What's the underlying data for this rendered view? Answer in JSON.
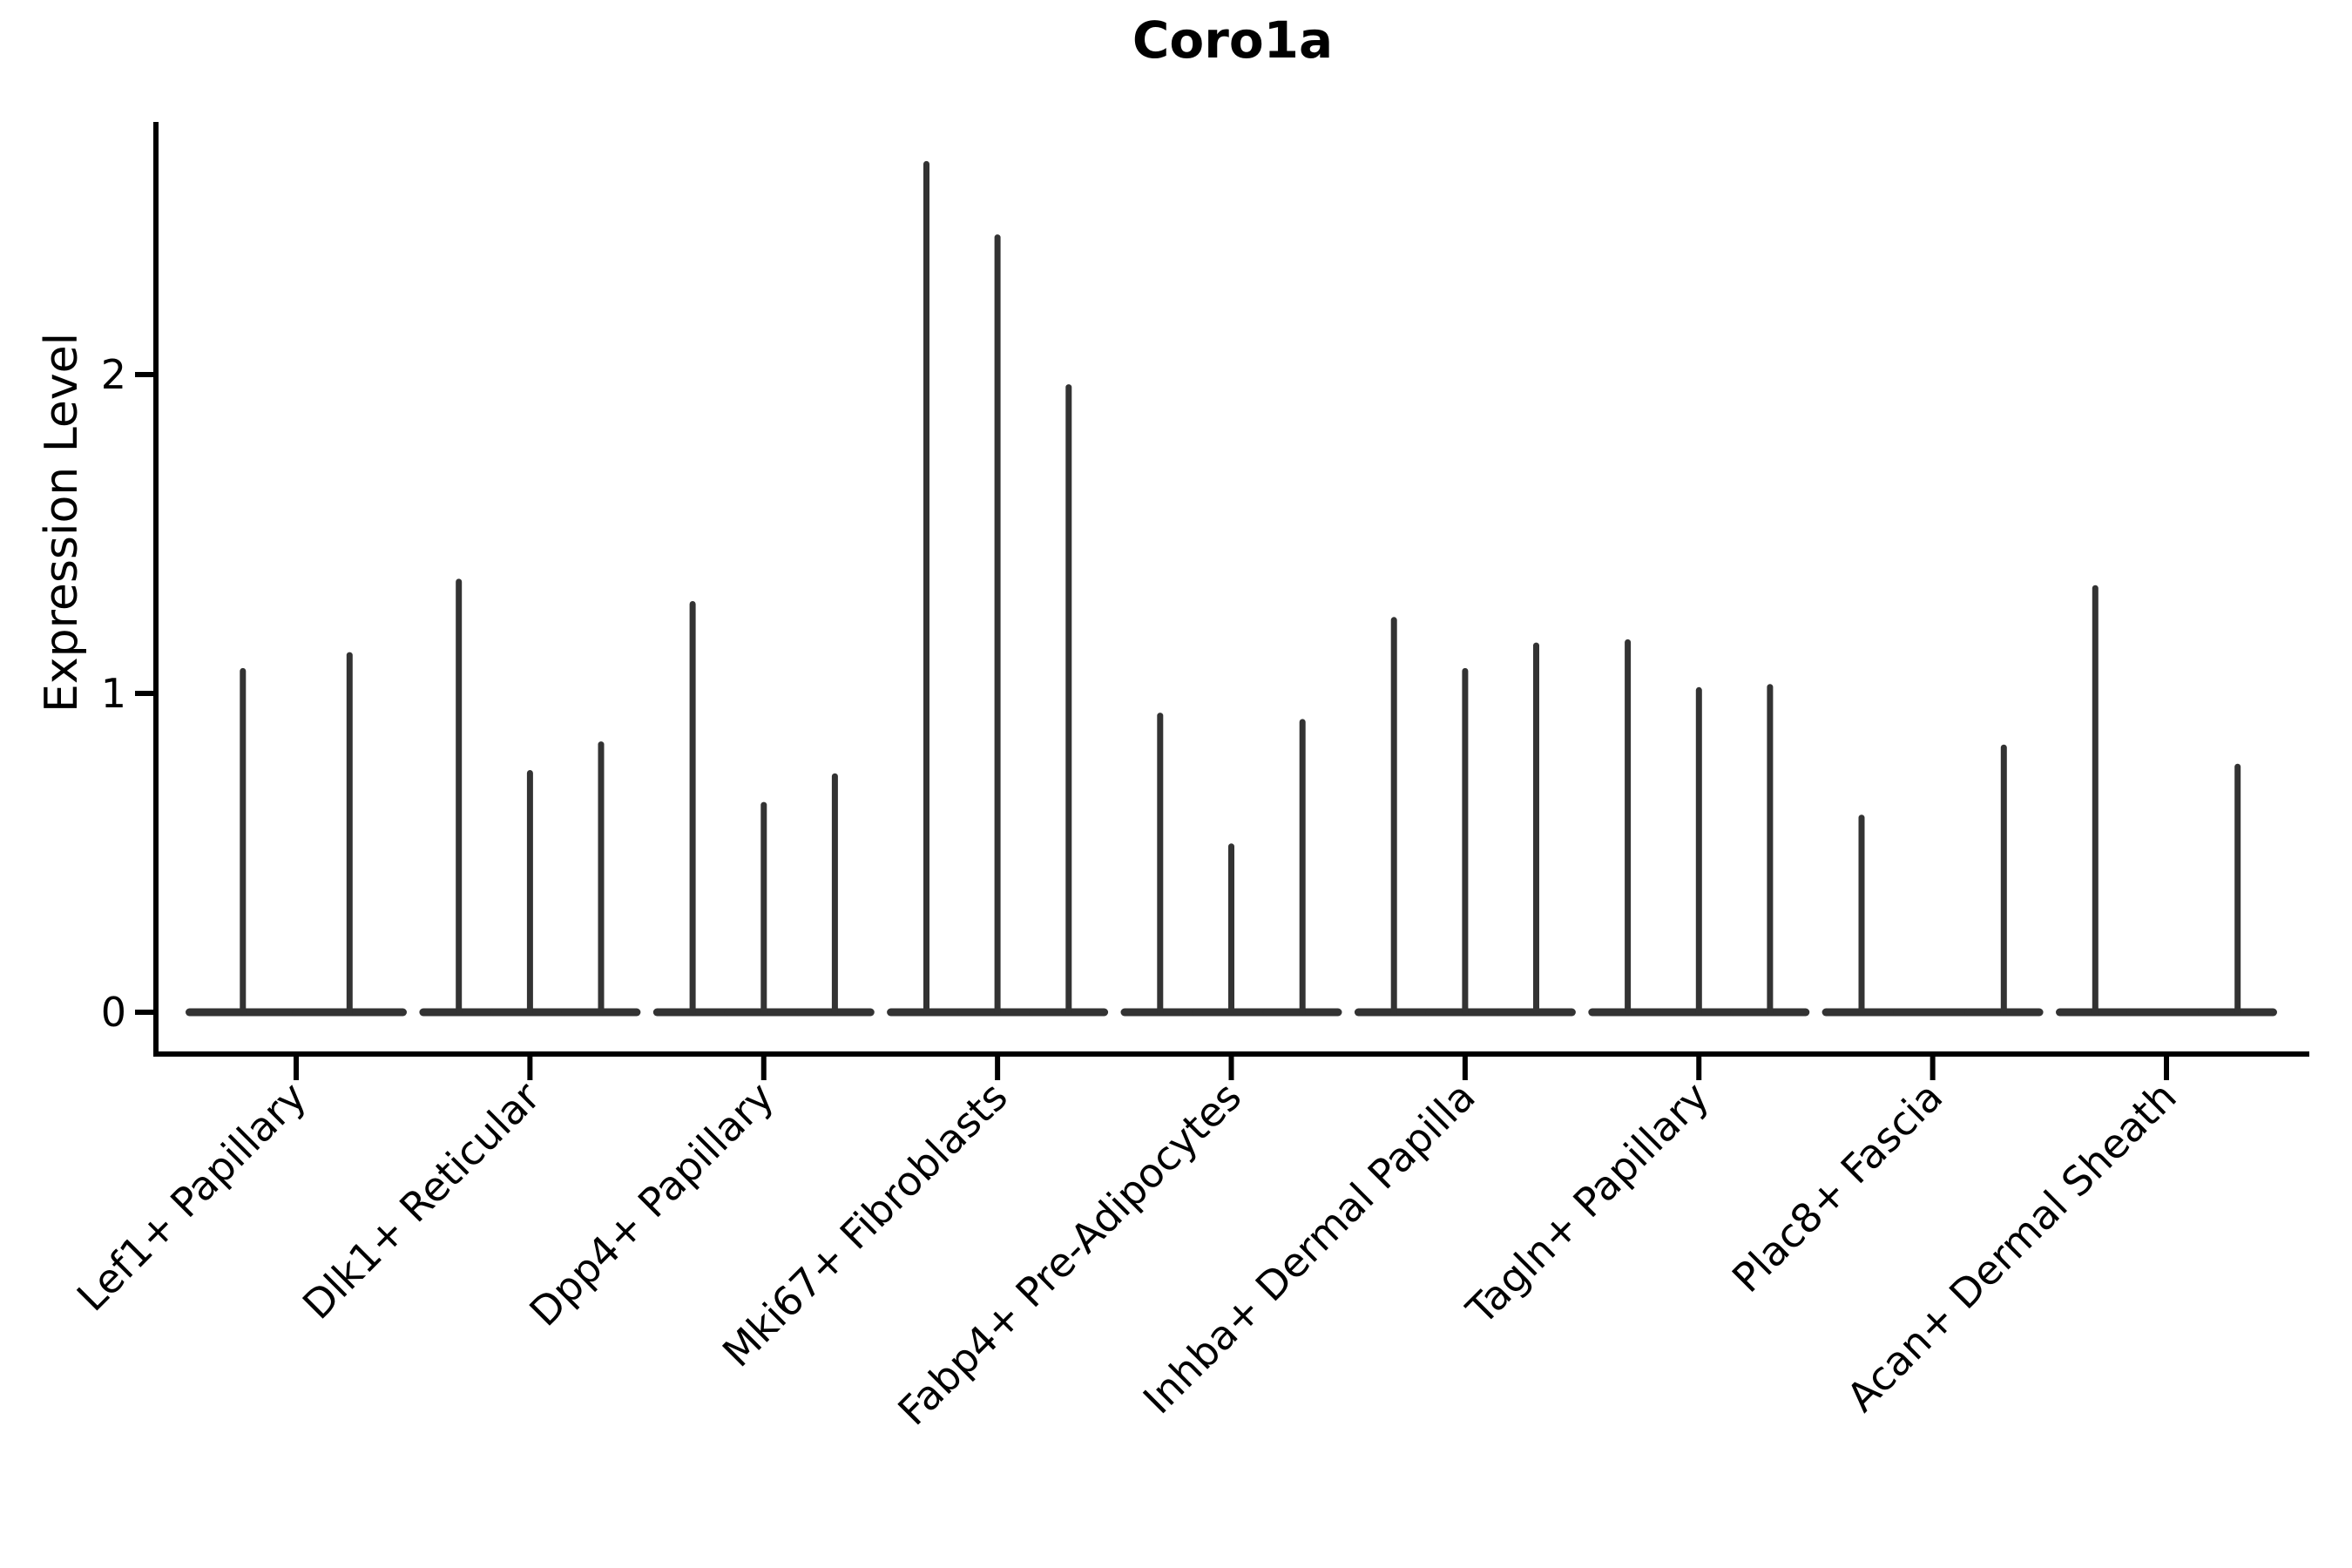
{
  "chart_data": {
    "type": "violin",
    "title": "Coro1a",
    "ylabel": "Expression Level",
    "xlabel": "",
    "ytick_labels": [
      "0",
      "1",
      "2"
    ],
    "ytick_values": [
      0,
      1,
      2
    ],
    "ylim": [
      0,
      2.79
    ],
    "grid": false,
    "legend": "none",
    "style_note": "Seurat-style violin plot; each violin collapses to a flat base at 0 with a thin vertical spike to the max expression value",
    "violin_color": "#333333",
    "axis_color": "#000000",
    "categories": [
      "Lef1+ Papillary",
      "Dlk1+ Reticular",
      "Dpp4+ Papillary",
      "Mki67+ Fibroblasts",
      "Fabp4+ Pre-Adipocytes",
      "Inhba+ Dermal Papilla",
      "Tagln+ Papillary",
      "Plac8+ Fascia",
      "Acan+ Dermal Sheath"
    ],
    "groups": [
      {
        "label": "Lef1+ Papillary",
        "violins": [
          {
            "max": 1.07
          },
          {
            "max": 1.12
          }
        ]
      },
      {
        "label": "Dlk1+ Reticular",
        "violins": [
          {
            "max": 1.35
          },
          {
            "max": 0.75
          },
          {
            "max": 0.84
          }
        ]
      },
      {
        "label": "Dpp4+ Papillary",
        "violins": [
          {
            "max": 1.28
          },
          {
            "max": 0.65
          },
          {
            "max": 0.74
          }
        ]
      },
      {
        "label": "Mki67+ Fibroblasts",
        "violins": [
          {
            "max": 2.66
          },
          {
            "max": 2.43
          },
          {
            "max": 1.96
          }
        ]
      },
      {
        "label": "Fabp4+ Pre-Adipocytes",
        "violins": [
          {
            "max": 0.93
          },
          {
            "max": 0.52
          },
          {
            "max": 0.91
          }
        ]
      },
      {
        "label": "Inhba+ Dermal Papilla",
        "violins": [
          {
            "max": 1.23
          },
          {
            "max": 1.07
          },
          {
            "max": 1.15
          }
        ]
      },
      {
        "label": "Tagln+ Papillary",
        "violins": [
          {
            "max": 1.16
          },
          {
            "max": 1.01
          },
          {
            "max": 1.02
          }
        ]
      },
      {
        "label": "Plac8+ Fascia",
        "violins": [
          {
            "max": 0.61
          },
          {
            "max": 0.0
          },
          {
            "max": 0.83
          }
        ]
      },
      {
        "label": "Acan+ Dermal Sheath",
        "violins": [
          {
            "max": 1.33
          },
          {
            "max": 0.0
          },
          {
            "max": 0.77
          }
        ]
      }
    ]
  }
}
